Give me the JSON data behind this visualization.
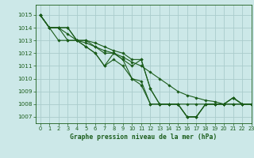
{
  "title": "Graphe pression niveau de la mer (hPa)",
  "bg_color": "#cce8e8",
  "grid_color": "#aacccc",
  "line_color": "#1a5c1a",
  "ylim": [
    1006.5,
    1015.8
  ],
  "xlim": [
    -0.5,
    23
  ],
  "yticks": [
    1007,
    1008,
    1009,
    1010,
    1011,
    1012,
    1013,
    1014,
    1015
  ],
  "xticks": [
    0,
    1,
    2,
    3,
    4,
    5,
    6,
    7,
    8,
    9,
    10,
    11,
    12,
    13,
    14,
    15,
    16,
    17,
    18,
    19,
    20,
    21,
    22,
    23
  ],
  "series": [
    [
      1015,
      1014,
      1014,
      1014,
      1013,
      1012.5,
      1012,
      1011,
      1011.5,
      1011,
      1010,
      1009.8,
      1008,
      1008,
      1008,
      1008,
      1007,
      1007,
      1008,
      1008,
      1008,
      1008.5,
      1008,
      1008
    ],
    [
      1015,
      1014,
      1014,
      1013,
      1013,
      1013,
      1012.5,
      1012,
      1012,
      1011.5,
      1011,
      1011.5,
      1009.2,
      1008,
      1008,
      1008,
      1007,
      1007,
      1008,
      1008,
      1008,
      1008,
      1008,
      1008
    ],
    [
      1015,
      1014,
      1014,
      1014,
      1013,
      1013,
      1012.8,
      1012.5,
      1012.2,
      1012,
      1011.5,
      1011.5,
      1009.2,
      1008,
      1008,
      1008,
      1008,
      1008,
      1008,
      1008,
      1008,
      1008.5,
      1008,
      1008
    ],
    [
      1015,
      1014,
      1013,
      1013,
      1013,
      1012.5,
      1012,
      1011,
      1012,
      1011.5,
      1010,
      1009.5,
      1008,
      1008,
      1008,
      1008,
      1007,
      1007,
      1008,
      1008,
      1008,
      1008.5,
      1008,
      1008
    ],
    [
      1015,
      1014,
      1014,
      1013.5,
      1013,
      1012.8,
      1012.5,
      1012.2,
      1012,
      1011.7,
      1011.3,
      1011,
      1010.5,
      1010,
      1009.5,
      1009,
      1008.7,
      1008.5,
      1008.3,
      1008.2,
      1008,
      1008,
      1008,
      1008
    ]
  ]
}
